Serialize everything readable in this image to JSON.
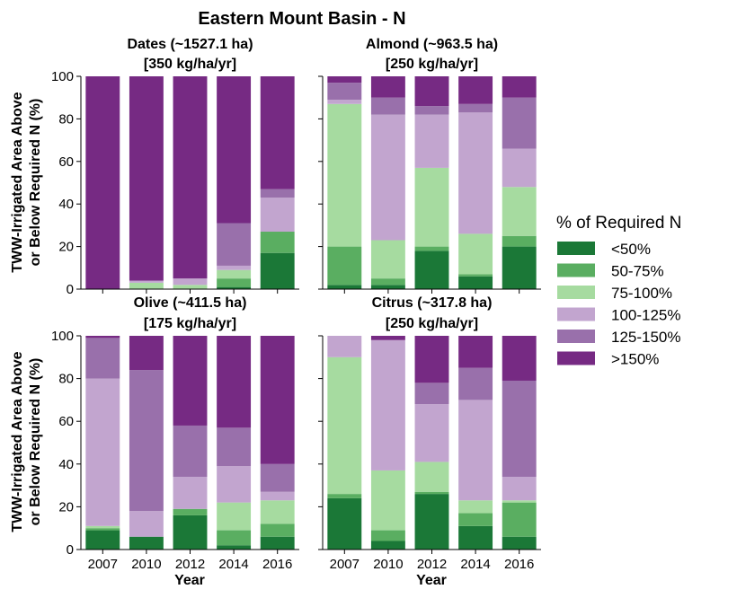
{
  "figure": {
    "title": "Eastern Mount Basin - N",
    "ylabel_line1": "TWW-Irrigated Area Above",
    "ylabel_line2": "or Below Required N (%)",
    "xlabel": "Year"
  },
  "legend": {
    "title": "% of Required N",
    "entries": [
      {
        "label": "<50%",
        "color": "#1b7837"
      },
      {
        "label": "50-75%",
        "color": "#5aae61"
      },
      {
        "label": "75-100%",
        "color": "#a6dba0"
      },
      {
        "label": "100-125%",
        "color": "#c2a5cf"
      },
      {
        "label": "125-150%",
        "color": "#9970ab"
      },
      {
        "label": ">150%",
        "color": "#762a83"
      }
    ]
  },
  "chart_data": [
    {
      "type": "bar",
      "stacked": true,
      "title_line1": "Dates (~1527.1 ha)",
      "title_line2": "[350 kg/ha/yr]",
      "categories": [
        "2007",
        "2010",
        "2012",
        "2014",
        "2016"
      ],
      "ylim": [
        0,
        100
      ],
      "yticks": [
        "0",
        "20",
        "40",
        "60",
        "80",
        "100"
      ],
      "series": [
        {
          "name": "<50%",
          "values": [
            0,
            0,
            0,
            1,
            17
          ]
        },
        {
          "name": "50-75%",
          "values": [
            0,
            0,
            0,
            4,
            10
          ]
        },
        {
          "name": "75-100%",
          "values": [
            0,
            3,
            2,
            4,
            0
          ]
        },
        {
          "name": "100-125%",
          "values": [
            0,
            1,
            3,
            2,
            16
          ]
        },
        {
          "name": "125-150%",
          "values": [
            0,
            0,
            0,
            20,
            4
          ]
        },
        {
          "name": ">150%",
          "values": [
            100,
            96,
            95,
            69,
            53
          ]
        }
      ]
    },
    {
      "type": "bar",
      "stacked": true,
      "title_line1": "Almond (~963.5 ha)",
      "title_line2": "[250 kg/ha/yr]",
      "categories": [
        "2007",
        "2010",
        "2012",
        "2014",
        "2016"
      ],
      "ylim": [
        0,
        100
      ],
      "yticks": [
        "0",
        "20",
        "40",
        "60",
        "80",
        "100"
      ],
      "series": [
        {
          "name": "<50%",
          "values": [
            2,
            2,
            18,
            6,
            20
          ]
        },
        {
          "name": "50-75%",
          "values": [
            18,
            3,
            2,
            1,
            5
          ]
        },
        {
          "name": "75-100%",
          "values": [
            67,
            18,
            37,
            19,
            23
          ]
        },
        {
          "name": "100-125%",
          "values": [
            2,
            59,
            25,
            57,
            18
          ]
        },
        {
          "name": "125-150%",
          "values": [
            8,
            8,
            4,
            4,
            24
          ]
        },
        {
          "name": ">150%",
          "values": [
            3,
            10,
            14,
            13,
            10
          ]
        }
      ]
    },
    {
      "type": "bar",
      "stacked": true,
      "title_line1": "Olive (~411.5 ha)",
      "title_line2": "[175 kg/ha/yr]",
      "categories": [
        "2007",
        "2010",
        "2012",
        "2014",
        "2016"
      ],
      "ylim": [
        0,
        100
      ],
      "yticks": [
        "0",
        "20",
        "40",
        "60",
        "80",
        "100"
      ],
      "series": [
        {
          "name": "<50%",
          "values": [
            9,
            6,
            16,
            2,
            6
          ]
        },
        {
          "name": "50-75%",
          "values": [
            1,
            0,
            3,
            7,
            6
          ]
        },
        {
          "name": "75-100%",
          "values": [
            1,
            0,
            0,
            13,
            11
          ]
        },
        {
          "name": "100-125%",
          "values": [
            69,
            12,
            15,
            17,
            4
          ]
        },
        {
          "name": "125-150%",
          "values": [
            19,
            66,
            24,
            18,
            13
          ]
        },
        {
          "name": ">150%",
          "values": [
            1,
            16,
            42,
            43,
            60
          ]
        }
      ]
    },
    {
      "type": "bar",
      "stacked": true,
      "title_line1": "Citrus (~317.8 ha)",
      "title_line2": "[250 kg/ha/yr]",
      "categories": [
        "2007",
        "2010",
        "2012",
        "2014",
        "2016"
      ],
      "ylim": [
        0,
        100
      ],
      "yticks": [
        "0",
        "20",
        "40",
        "60",
        "80",
        "100"
      ],
      "series": [
        {
          "name": "<50%",
          "values": [
            24,
            4,
            26,
            11,
            6
          ]
        },
        {
          "name": "50-75%",
          "values": [
            2,
            5,
            1,
            6,
            16
          ]
        },
        {
          "name": "75-100%",
          "values": [
            64,
            28,
            14,
            6,
            1
          ]
        },
        {
          "name": "100-125%",
          "values": [
            10,
            61,
            27,
            47,
            11
          ]
        },
        {
          "name": "125-150%",
          "values": [
            0,
            0,
            10,
            15,
            45
          ]
        },
        {
          "name": ">150%",
          "values": [
            0,
            2,
            22,
            15,
            21
          ]
        }
      ]
    }
  ]
}
